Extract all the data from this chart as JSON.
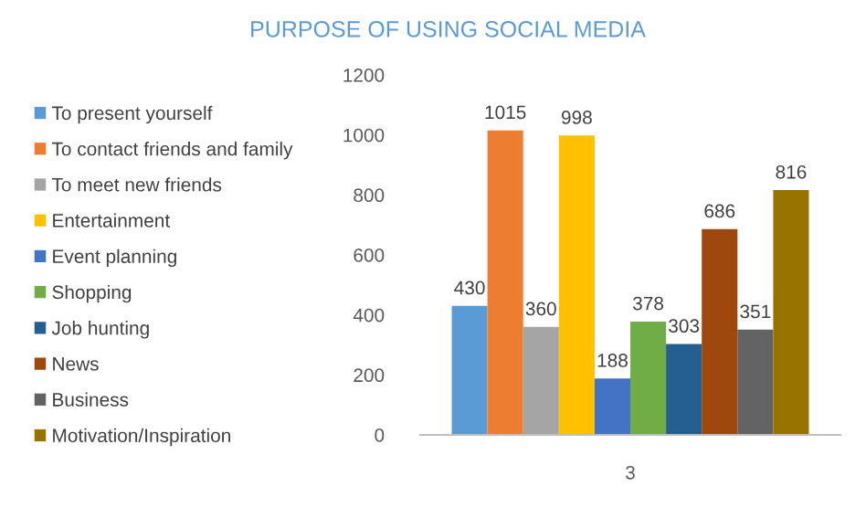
{
  "chart_data": {
    "type": "bar",
    "title": "PURPOSE OF USING SOCIAL MEDIA",
    "categories": [
      "3"
    ],
    "series": [
      {
        "name": "To present yourself",
        "color": "#5b9bd5",
        "values": [
          430
        ]
      },
      {
        "name": "To contact friends and family",
        "color": "#ed7d31",
        "values": [
          1015
        ]
      },
      {
        "name": "To meet new friends",
        "color": "#a5a5a5",
        "values": [
          360
        ]
      },
      {
        "name": "Entertainment",
        "color": "#ffc000",
        "values": [
          998
        ]
      },
      {
        "name": "Event planning",
        "color": "#4472c4",
        "values": [
          188
        ]
      },
      {
        "name": "Shopping",
        "color": "#70ad47",
        "values": [
          378
        ]
      },
      {
        "name": "Job hunting",
        "color": "#255e91",
        "values": [
          303
        ]
      },
      {
        "name": "News",
        "color": "#9e480e",
        "values": [
          686
        ]
      },
      {
        "name": "Business",
        "color": "#636363",
        "values": [
          351
        ]
      },
      {
        "name": "Motivation/Inspiration",
        "color": "#997300",
        "values": [
          816
        ]
      }
    ],
    "ylim": [
      0,
      1200
    ],
    "yticks": [
      0,
      200,
      400,
      600,
      800,
      1000,
      1200
    ],
    "grid": false,
    "legend": "left",
    "data_labels": true
  }
}
